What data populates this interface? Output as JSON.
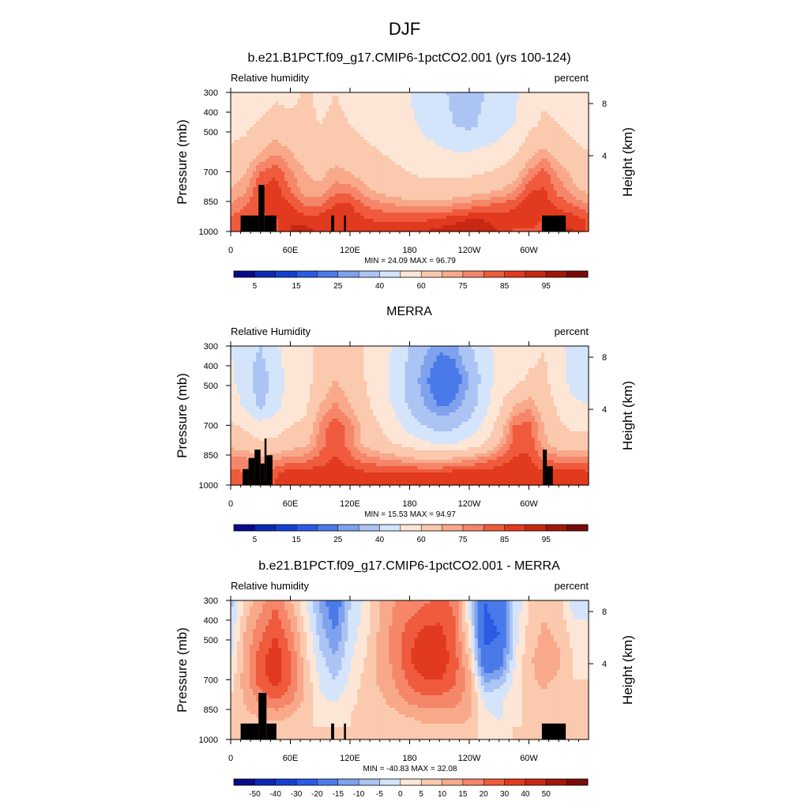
{
  "figure": {
    "title": "DJF"
  },
  "palettes": {
    "abs": [
      "#0a0a8c",
      "#0a2ab4",
      "#1440d2",
      "#2a5ae6",
      "#4a7ae8",
      "#7fa2ee",
      "#abc4f4",
      "#d4e4fa",
      "#fde6d6",
      "#fbc9ae",
      "#f8a98a",
      "#f5866a",
      "#ef5b3c",
      "#e23a1e",
      "#c62812",
      "#a0180a",
      "#7a0a06"
    ],
    "diff": [
      "#0a0a8c",
      "#0a2ab4",
      "#1440d2",
      "#2a5ae6",
      "#4a7ae8",
      "#7fa2ee",
      "#abc4f4",
      "#d4e4fa",
      "#fde6d6",
      "#fbc9ae",
      "#f8a98a",
      "#f5866a",
      "#ef5b3c",
      "#e23a1e",
      "#c62812",
      "#a0180a",
      "#7a0a06"
    ],
    "terrain": "#000000"
  },
  "chart_data": [
    {
      "type": "heatmap",
      "title": "b.e21.B1PCT.f09_g17.CMIP6-1pctCO2.001 (yrs 100-124)",
      "left_label": "Relative humidity",
      "right_label": "percent",
      "ylabel": "Pressure (mb)",
      "y2label": "Height (km)",
      "x_ticks": [
        "0",
        "60E",
        "120E",
        "180",
        "120W",
        "60W"
      ],
      "y_ticks": [
        "300",
        "400",
        "500",
        "700",
        "850",
        "1000"
      ],
      "y2_ticks": [
        "8",
        "4"
      ],
      "stats": "MIN = 24.09  MAX = 96.79",
      "colorbar_labels": [
        "5",
        "15",
        "25",
        "40",
        "60",
        "75",
        "85",
        "95"
      ],
      "palette": "abs",
      "levels": [
        5,
        10,
        15,
        20,
        25,
        30,
        40,
        50,
        60,
        70,
        75,
        80,
        85,
        90,
        95,
        98
      ],
      "field": [
        [
          52,
          50,
          54,
          58,
          56,
          62,
          58,
          60,
          58,
          57,
          56,
          54,
          50,
          46,
          42,
          38,
          36,
          40,
          44,
          48,
          54,
          58,
          56,
          54,
          50
        ],
        [
          56,
          58,
          62,
          66,
          64,
          62,
          60,
          62,
          60,
          58,
          56,
          54,
          52,
          48,
          44,
          40,
          38,
          42,
          46,
          50,
          58,
          62,
          60,
          58,
          54
        ],
        [
          62,
          64,
          70,
          74,
          70,
          66,
          64,
          66,
          64,
          62,
          60,
          58,
          56,
          54,
          52,
          50,
          50,
          52,
          54,
          58,
          66,
          72,
          66,
          62,
          60
        ],
        [
          66,
          70,
          80,
          84,
          76,
          70,
          68,
          72,
          70,
          66,
          64,
          62,
          60,
          58,
          58,
          58,
          58,
          60,
          62,
          66,
          76,
          82,
          74,
          68,
          64
        ],
        [
          70,
          74,
          86,
          88,
          80,
          72,
          72,
          78,
          78,
          72,
          68,
          66,
          64,
          64,
          64,
          64,
          66,
          68,
          70,
          74,
          84,
          86,
          78,
          72,
          68
        ],
        [
          76,
          80,
          86,
          88,
          86,
          80,
          80,
          86,
          86,
          80,
          78,
          76,
          74,
          74,
          74,
          76,
          78,
          80,
          82,
          84,
          90,
          88,
          84,
          80,
          76
        ],
        [
          82,
          84,
          84,
          84,
          90,
          88,
          88,
          90,
          88,
          86,
          84,
          84,
          84,
          84,
          86,
          88,
          90,
          90,
          88,
          88,
          88,
          84,
          90,
          88,
          84
        ],
        [
          84,
          86,
          84,
          84,
          90,
          92,
          88,
          86,
          88,
          88,
          88,
          88,
          88,
          90,
          92,
          94,
          94,
          92,
          90,
          84,
          84,
          84,
          92,
          90,
          84
        ]
      ],
      "terrain": [
        [
          10,
          28,
          0.0
        ],
        [
          28,
          34,
          0.22
        ],
        [
          34,
          46,
          0.0
        ],
        [
          101,
          104,
          0.0
        ],
        [
          114,
          116,
          0.0
        ],
        [
          313,
          337,
          0.0
        ]
      ]
    },
    {
      "type": "heatmap",
      "title": "MERRA",
      "left_label": "Relative Humidity",
      "right_label": "percent",
      "ylabel": "Pressure (mb)",
      "y2label": "Height (km)",
      "x_ticks": [
        "0",
        "60E",
        "120E",
        "180",
        "120W",
        "60W"
      ],
      "y_ticks": [
        "300",
        "400",
        "500",
        "700",
        "850",
        "1000"
      ],
      "y2_ticks": [
        "8",
        "4"
      ],
      "stats": "MIN = 15.53  MAX = 94.97",
      "colorbar_labels": [
        "5",
        "15",
        "25",
        "40",
        "60",
        "75",
        "85",
        "95"
      ],
      "palette": "abs",
      "levels": [
        5,
        10,
        15,
        20,
        25,
        30,
        40,
        50,
        60,
        70,
        75,
        80,
        85,
        90,
        95,
        98
      ],
      "field": [
        [
          50,
          44,
          40,
          48,
          56,
          58,
          62,
          66,
          64,
          60,
          56,
          48,
          40,
          32,
          26,
          28,
          38,
          48,
          52,
          50,
          56,
          60,
          54,
          44,
          42
        ],
        [
          52,
          44,
          34,
          44,
          54,
          56,
          64,
          70,
          66,
          60,
          56,
          46,
          36,
          26,
          20,
          20,
          30,
          44,
          54,
          56,
          62,
          62,
          54,
          46,
          44
        ],
        [
          56,
          48,
          38,
          46,
          56,
          58,
          70,
          76,
          70,
          62,
          56,
          48,
          38,
          30,
          24,
          26,
          34,
          46,
          58,
          70,
          74,
          66,
          58,
          52,
          50
        ],
        [
          62,
          58,
          54,
          56,
          60,
          62,
          76,
          84,
          78,
          66,
          60,
          54,
          46,
          40,
          36,
          38,
          44,
          52,
          64,
          80,
          82,
          70,
          62,
          58,
          58
        ],
        [
          68,
          66,
          62,
          62,
          66,
          68,
          78,
          84,
          78,
          68,
          64,
          60,
          56,
          52,
          50,
          50,
          54,
          60,
          70,
          82,
          84,
          72,
          66,
          64,
          64
        ],
        [
          76,
          76,
          72,
          74,
          78,
          78,
          82,
          86,
          82,
          78,
          76,
          74,
          72,
          70,
          70,
          72,
          74,
          78,
          82,
          86,
          86,
          80,
          78,
          78,
          78
        ],
        [
          82,
          80,
          78,
          84,
          88,
          88,
          88,
          88,
          88,
          86,
          86,
          86,
          86,
          86,
          86,
          88,
          88,
          88,
          88,
          88,
          88,
          86,
          88,
          88,
          86
        ],
        [
          84,
          82,
          80,
          86,
          88,
          88,
          88,
          88,
          88,
          88,
          88,
          88,
          88,
          88,
          88,
          88,
          88,
          90,
          90,
          88,
          86,
          86,
          90,
          90,
          86
        ]
      ],
      "terrain": [
        [
          12,
          18,
          0.0
        ],
        [
          18,
          24,
          0.08
        ],
        [
          24,
          30,
          0.14
        ],
        [
          30,
          34,
          0.04
        ],
        [
          34,
          36,
          0.22
        ],
        [
          36,
          42,
          0.1
        ],
        [
          314,
          318,
          0.14
        ],
        [
          318,
          324,
          0.02
        ]
      ]
    },
    {
      "type": "heatmap",
      "title": "b.e21.B1PCT.f09_g17.CMIP6-1pctCO2.001 - MERRA",
      "left_label": "Relative humidity",
      "right_label": "percent",
      "ylabel": "Pressure (mb)",
      "y2label": "Height (km)",
      "x_ticks": [
        "0",
        "60E",
        "120E",
        "180",
        "120W",
        "60W"
      ],
      "y_ticks": [
        "300",
        "400",
        "500",
        "700",
        "850",
        "1000"
      ],
      "y2_ticks": [
        "8",
        "4"
      ],
      "stats": "MIN = -40.83  MAX = 32.08",
      "colorbar_labels": [
        "-50",
        "-40",
        "-30",
        "-20",
        "-15",
        "-10",
        "-5",
        "0",
        "5",
        "10",
        "15",
        "20",
        "30",
        "40",
        "50"
      ],
      "palette": "diff",
      "levels": [
        -60,
        -50,
        -40,
        -30,
        -20,
        -15,
        -10,
        -5,
        0,
        5,
        10,
        15,
        20,
        30,
        40,
        50
      ],
      "field": [
        [
          -12,
          2,
          8,
          14,
          6,
          -4,
          -16,
          -26,
          -10,
          -4,
          6,
          10,
          12,
          14,
          16,
          14,
          -6,
          -30,
          -28,
          -10,
          0,
          4,
          2,
          -8,
          -6
        ],
        [
          -8,
          6,
          14,
          20,
          12,
          0,
          -12,
          -20,
          -8,
          -2,
          6,
          12,
          18,
          22,
          22,
          16,
          -2,
          -32,
          -30,
          -8,
          2,
          6,
          4,
          -2,
          -4
        ],
        [
          -6,
          8,
          18,
          24,
          16,
          2,
          -8,
          -14,
          -6,
          0,
          6,
          12,
          20,
          24,
          24,
          18,
          4,
          -28,
          -26,
          -6,
          4,
          8,
          6,
          0,
          -2
        ],
        [
          -2,
          8,
          18,
          22,
          16,
          4,
          -6,
          -10,
          -4,
          2,
          6,
          10,
          16,
          20,
          20,
          16,
          8,
          -16,
          -14,
          -4,
          4,
          6,
          4,
          0,
          0
        ],
        [
          0,
          6,
          12,
          16,
          12,
          4,
          -4,
          -6,
          -2,
          2,
          4,
          8,
          12,
          14,
          14,
          12,
          8,
          -6,
          -6,
          -2,
          2,
          4,
          2,
          0,
          0
        ],
        [
          0,
          4,
          6,
          8,
          6,
          2,
          -2,
          -2,
          0,
          2,
          2,
          4,
          6,
          8,
          8,
          8,
          6,
          -4,
          -6,
          -2,
          2,
          2,
          0,
          0,
          0
        ],
        [
          0,
          2,
          2,
          2,
          2,
          0,
          0,
          0,
          0,
          0,
          2,
          2,
          2,
          4,
          4,
          4,
          4,
          -2,
          -4,
          0,
          0,
          0,
          0,
          0,
          0
        ],
        [
          0,
          0,
          2,
          0,
          0,
          0,
          0,
          0,
          0,
          0,
          0,
          0,
          2,
          2,
          2,
          2,
          2,
          -2,
          -4,
          0,
          0,
          0,
          0,
          0,
          0
        ]
      ],
      "terrain": [
        [
          10,
          28,
          0.0
        ],
        [
          28,
          36,
          0.22
        ],
        [
          36,
          46,
          0.0
        ],
        [
          101,
          104,
          0.0
        ],
        [
          114,
          116,
          0.0
        ],
        [
          313,
          337,
          0.0
        ]
      ]
    }
  ]
}
